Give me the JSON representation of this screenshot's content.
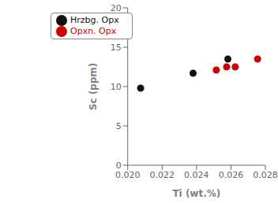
{
  "chart_data": {
    "type": "scatter",
    "series": [
      {
        "name": "Hrzbg. Opx",
        "color": "#111111",
        "x": [
          0.02075,
          0.0238,
          0.02582
        ],
        "values": [
          9.8,
          11.7,
          13.5
        ]
      },
      {
        "name": "Opxn. Opx",
        "color": "#cc0000",
        "x": [
          0.02515,
          0.02575,
          0.02625,
          0.02755
        ],
        "values": [
          12.1,
          12.5,
          12.5,
          13.5
        ]
      }
    ],
    "xlabel": "Ti (wt.%)",
    "ylabel": "Sc (ppm)",
    "xlim": [
      0.02,
      0.028
    ],
    "ylim": [
      0,
      20
    ],
    "xticks": [
      {
        "value": 0.02,
        "label": "0.020"
      },
      {
        "value": 0.022,
        "label": "0.022"
      },
      {
        "value": 0.024,
        "label": "0.024"
      },
      {
        "value": 0.026,
        "label": "0.026"
      },
      {
        "value": 0.028,
        "label": "0.028"
      }
    ],
    "yticks": [
      0,
      5,
      10,
      15,
      20
    ],
    "grid": false,
    "legend": "upper left"
  }
}
